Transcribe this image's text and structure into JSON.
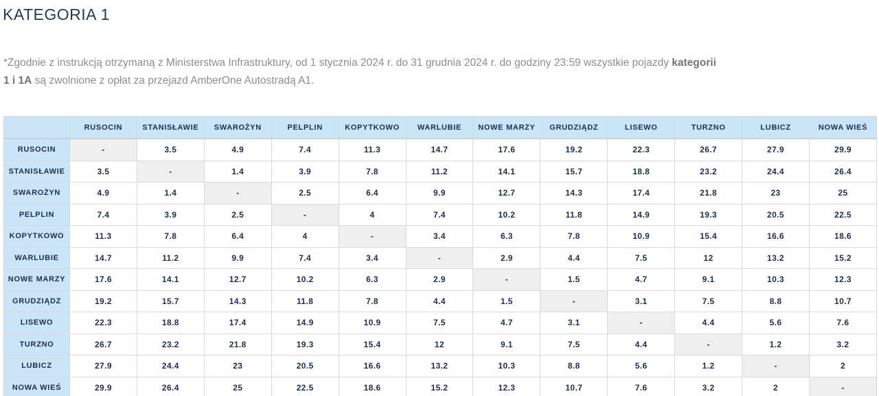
{
  "page": {
    "title": "KATEGORIA 1",
    "note": {
      "line1_text": "*Zgodnie z instrukcją otrzymaną z Ministerstwa Infrastruktury, od 1 stycznia 2024 r.  do 31 grudnia 2024 r. do godziny 23:59 wszystkie pojazdy ",
      "line1_bold": "kategorii",
      "line2_bold": "1 i 1A",
      "line2_text": " są zwolnione z opłat za przejazd AmberOne Autostradą A1."
    }
  },
  "colors": {
    "title_navy": "#1f3b57",
    "table_text_navy": "#1e2c4f",
    "header_blue": "#cbe5f8",
    "diagonal_gray": "#efefef",
    "border_gray": "#d9d9d9",
    "note_gray": "#8d8d8d"
  },
  "table": {
    "corner_label": "",
    "empty_marker": "-",
    "stations": [
      "RUSOCIN",
      "STANISŁAWIE",
      "SWAROŻYN",
      "PELPLIN",
      "KOPYTKOWO",
      "WARLUBIE",
      "NOWE MARZY",
      "GRUDZIĄDZ",
      "LISEWO",
      "TURZNO",
      "LUBICZ",
      "NOWA WIEŚ"
    ],
    "matrix": [
      [
        "-",
        "3.5",
        "4.9",
        "7.4",
        "11.3",
        "14.7",
        "17.6",
        "19.2",
        "22.3",
        "26.7",
        "27.9",
        "29.9"
      ],
      [
        "3.5",
        "-",
        "1.4",
        "3.9",
        "7.8",
        "11.2",
        "14.1",
        "15.7",
        "18.8",
        "23.2",
        "24.4",
        "26.4"
      ],
      [
        "4.9",
        "1.4",
        "-",
        "2.5",
        "6.4",
        "9.9",
        "12.7",
        "14.3",
        "17.4",
        "21.8",
        "23",
        "25"
      ],
      [
        "7.4",
        "3.9",
        "2.5",
        "-",
        "4",
        "7.4",
        "10.2",
        "11.8",
        "14.9",
        "19.3",
        "20.5",
        "22.5"
      ],
      [
        "11.3",
        "7.8",
        "6.4",
        "4",
        "-",
        "3.4",
        "6.3",
        "7.8",
        "10.9",
        "15.4",
        "16.6",
        "18.6"
      ],
      [
        "14.7",
        "11.2",
        "9.9",
        "7.4",
        "3.4",
        "-",
        "2.9",
        "4.4",
        "7.5",
        "12",
        "13.2",
        "15.2"
      ],
      [
        "17.6",
        "14.1",
        "12.7",
        "10.2",
        "6.3",
        "2.9",
        "-",
        "1.5",
        "4.7",
        "9.1",
        "10.3",
        "12.3"
      ],
      [
        "19.2",
        "15.7",
        "14.3",
        "11.8",
        "7.8",
        "4.4",
        "1.5",
        "-",
        "3.1",
        "7.5",
        "8.8",
        "10.7"
      ],
      [
        "22.3",
        "18.8",
        "17.4",
        "14.9",
        "10.9",
        "7.5",
        "4.7",
        "3.1",
        "-",
        "4.4",
        "5.6",
        "7.6"
      ],
      [
        "26.7",
        "23.2",
        "21.8",
        "19.3",
        "15.4",
        "12",
        "9.1",
        "7.5",
        "4.4",
        "-",
        "1.2",
        "3.2"
      ],
      [
        "27.9",
        "24.4",
        "23",
        "20.5",
        "16.6",
        "13.2",
        "10.3",
        "8.8",
        "5.6",
        "1.2",
        "-",
        "2"
      ],
      [
        "29.9",
        "26.4",
        "25",
        "22.5",
        "18.6",
        "15.2",
        "12.3",
        "10.7",
        "7.6",
        "3.2",
        "2",
        "-"
      ]
    ]
  }
}
